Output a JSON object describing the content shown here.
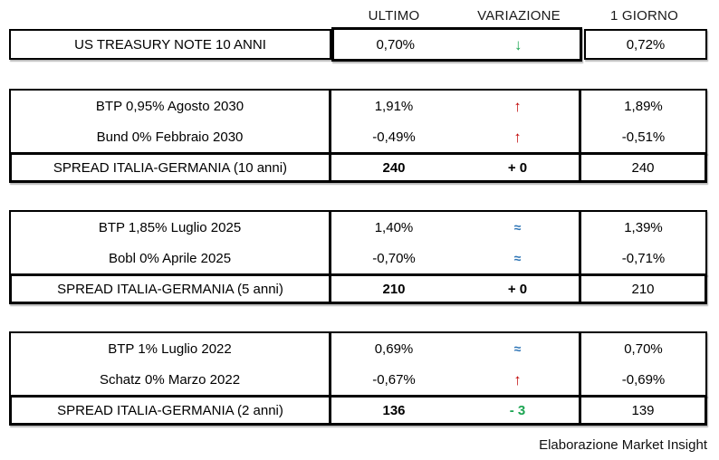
{
  "header": {
    "ultimo": "ULTIMO",
    "variazione": "VARIAZIONE",
    "giorno": "1 GIORNO"
  },
  "us_row": {
    "label": "US TREASURY NOTE 10 ANNI",
    "ultimo": "0,70%",
    "variation": {
      "glyph": "↓",
      "meaning": "down",
      "color": "#1CA552"
    },
    "giorno": "0,72%"
  },
  "blocks": [
    {
      "bonds": [
        {
          "label": "BTP 0,95% Agosto 2030",
          "ultimo": "1,91%",
          "variation": {
            "glyph": "↑",
            "meaning": "up",
            "color": "#C00000"
          },
          "giorno": "1,89%"
        },
        {
          "label": "Bund 0% Febbraio 2030",
          "ultimo": "-0,49%",
          "variation": {
            "glyph": "↑",
            "meaning": "up",
            "color": "#C00000"
          },
          "giorno": "-0,51%"
        }
      ],
      "spread": {
        "label": "SPREAD ITALIA-GERMANIA (10 anni)",
        "ultimo": "240",
        "variation": {
          "text": "+ 0",
          "color": "#000000"
        },
        "giorno": "240"
      }
    },
    {
      "bonds": [
        {
          "label": "BTP 1,85% Luglio 2025",
          "ultimo": "1,40%",
          "variation": {
            "glyph": "≈",
            "meaning": "flat",
            "color": "#2E75B6"
          },
          "giorno": "1,39%"
        },
        {
          "label": "Bobl 0% Aprile 2025",
          "ultimo": "-0,70%",
          "variation": {
            "glyph": "≈",
            "meaning": "flat",
            "color": "#2E75B6"
          },
          "giorno": "-0,71%"
        }
      ],
      "spread": {
        "label": "SPREAD ITALIA-GERMANIA (5 anni)",
        "ultimo": "210",
        "variation": {
          "text": "+ 0",
          "color": "#000000"
        },
        "giorno": "210"
      }
    },
    {
      "bonds": [
        {
          "label": "BTP 1% Luglio 2022",
          "ultimo": "0,69%",
          "variation": {
            "glyph": "≈",
            "meaning": "flat",
            "color": "#2E75B6"
          },
          "giorno": "0,70%"
        },
        {
          "label": "Schatz 0% Marzo 2022",
          "ultimo": "-0,67%",
          "variation": {
            "glyph": "↑",
            "meaning": "up",
            "color": "#C00000"
          },
          "giorno": "-0,69%"
        }
      ],
      "spread": {
        "label": "SPREAD ITALIA-GERMANIA (2 anni)",
        "ultimo": "136",
        "variation": {
          "text": "- 3",
          "color": "#1CA552"
        },
        "giorno": "139"
      }
    }
  ],
  "footer": "Elaborazione Market Insight",
  "chart_data": {
    "type": "table",
    "columns": [
      "",
      "ULTIMO",
      "VARIAZIONE",
      "1 GIORNO"
    ],
    "rows": [
      [
        "US TREASURY NOTE 10 ANNI",
        "0,70%",
        "↓",
        "0,72%"
      ],
      [
        "BTP 0,95% Agosto 2030",
        "1,91%",
        "↑",
        "1,89%"
      ],
      [
        "Bund 0% Febbraio 2030",
        "-0,49%",
        "↑",
        "-0,51%"
      ],
      [
        "SPREAD ITALIA-GERMANIA (10 anni)",
        "240",
        "+ 0",
        "240"
      ],
      [
        "BTP 1,85% Luglio 2025",
        "1,40%",
        "≈",
        "1,39%"
      ],
      [
        "Bobl 0% Aprile 2025",
        "-0,70%",
        "≈",
        "-0,71%"
      ],
      [
        "SPREAD ITALIA-GERMANIA (5 anni)",
        "210",
        "+ 0",
        "210"
      ],
      [
        "BTP 1% Luglio 2022",
        "0,69%",
        "≈",
        "0,70%"
      ],
      [
        "Schatz 0% Marzo 2022",
        "-0,67%",
        "↑",
        "-0,69%"
      ],
      [
        "SPREAD ITALIA-GERMANIA (2 anni)",
        "136",
        "- 3",
        "139"
      ]
    ],
    "source_note": "Elaborazione Market Insight",
    "status_colors": {
      "up": "#C00000",
      "down": "#1CA552",
      "flat": "#2E75B6"
    }
  }
}
